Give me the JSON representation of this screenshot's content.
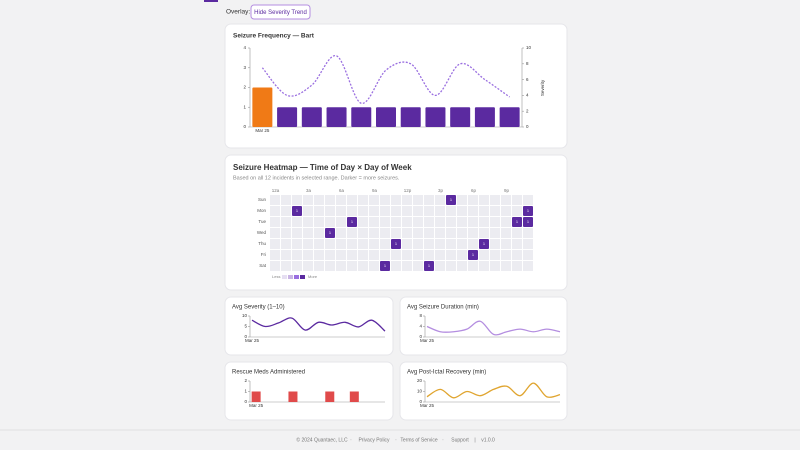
{
  "overlay": {
    "label": "Overlay:",
    "button": "Hide Severity Trend"
  },
  "chart_data": [
    {
      "type": "bar",
      "title": "Seizure Frequency — Bart",
      "categories": [
        "Mar 25",
        null,
        null,
        null,
        null,
        null,
        null,
        null,
        null,
        null,
        null
      ],
      "values": [
        2,
        1,
        1,
        1,
        1,
        1,
        1,
        1,
        1,
        1,
        1
      ],
      "colors": [
        "#f07a16",
        "#5b2aa0",
        "#5b2aa0",
        "#5b2aa0",
        "#5b2aa0",
        "#5b2aa0",
        "#5b2aa0",
        "#5b2aa0",
        "#5b2aa0",
        "#5b2aa0",
        "#5b2aa0"
      ],
      "ylim": [
        0,
        4
      ],
      "yticks": [
        0,
        1,
        2,
        3,
        4
      ],
      "line": {
        "values": [
          7.5,
          4,
          5.3,
          9,
          3,
          7.2,
          8,
          4,
          8,
          6,
          3.8
        ],
        "color": "#9a6fe0",
        "axis": "y2",
        "dashed": true
      },
      "y2lim": [
        0,
        10
      ],
      "y2ticks": [
        0,
        2,
        4,
        6,
        8,
        10
      ],
      "y2label": "Severity"
    },
    {
      "type": "heatmap",
      "title": "Seizure Heatmap — Time of Day × Day of Week",
      "subtitle": "Based on all 12 incidents in selected range. Darker = more seizures.",
      "rows": [
        "Sun",
        "Mon",
        "Tue",
        "Wed",
        "Thu",
        "Fri",
        "Sat"
      ],
      "columns": [
        "12a",
        null,
        null,
        "3a",
        null,
        null,
        "6a",
        null,
        null,
        "9a",
        null,
        null,
        "12p",
        null,
        null,
        "3p",
        null,
        null,
        "6p",
        null,
        null,
        "9p",
        null,
        null
      ],
      "values": [
        [
          0,
          0,
          0,
          0,
          0,
          0,
          0,
          0,
          0,
          0,
          0,
          0,
          0,
          0,
          0,
          0,
          1,
          0,
          0,
          0,
          0,
          0,
          0,
          0
        ],
        [
          0,
          0,
          1,
          0,
          0,
          0,
          0,
          0,
          0,
          0,
          0,
          0,
          0,
          0,
          0,
          0,
          0,
          0,
          0,
          0,
          0,
          0,
          0,
          1
        ],
        [
          0,
          0,
          0,
          0,
          0,
          0,
          0,
          1,
          0,
          0,
          0,
          0,
          0,
          0,
          0,
          0,
          0,
          0,
          0,
          0,
          0,
          0,
          1,
          1
        ],
        [
          0,
          0,
          0,
          0,
          0,
          1,
          0,
          0,
          0,
          0,
          0,
          0,
          0,
          0,
          0,
          0,
          0,
          0,
          0,
          0,
          0,
          0,
          0,
          0
        ],
        [
          0,
          0,
          0,
          0,
          0,
          0,
          0,
          0,
          0,
          0,
          0,
          1,
          0,
          0,
          0,
          0,
          0,
          0,
          0,
          1,
          0,
          0,
          0,
          0
        ],
        [
          0,
          0,
          0,
          0,
          0,
          0,
          0,
          0,
          0,
          0,
          0,
          0,
          0,
          0,
          0,
          0,
          0,
          0,
          1,
          0,
          0,
          0,
          0,
          0
        ],
        [
          0,
          0,
          0,
          0,
          0,
          0,
          0,
          0,
          0,
          0,
          1,
          0,
          0,
          0,
          1,
          0,
          0,
          0,
          0,
          0,
          0,
          0,
          0,
          0
        ]
      ],
      "empty_color": "#ececf1",
      "color": "#5b2aa0",
      "legend": {
        "low": "Less",
        "high": "More",
        "colors": [
          "#e6dff2",
          "#c9b4e4",
          "#9a6fe0",
          "#5b2aa0"
        ]
      }
    },
    {
      "type": "line",
      "title": "Avg Severity (1–10)",
      "categories": [
        "Mar 25",
        null,
        null,
        null,
        null,
        null,
        null,
        null,
        null,
        null,
        null
      ],
      "values": [
        8,
        5,
        6.7,
        9,
        3.3,
        7,
        5.7,
        7,
        4.8,
        8,
        2.8
      ],
      "color": "#5b2aa0",
      "ylim": [
        0,
        10
      ],
      "yticks": [
        0,
        5,
        10
      ]
    },
    {
      "type": "line",
      "title": "Avg Seizure Duration (min)",
      "categories": [
        "Mar 25",
        null,
        null,
        null,
        null,
        null,
        null,
        null,
        null,
        null,
        null
      ],
      "values": [
        4,
        2,
        2,
        3,
        6,
        1,
        2,
        3,
        2,
        3,
        2
      ],
      "color": "#b48ee0",
      "ylim": [
        0,
        8
      ],
      "yticks": [
        0,
        4,
        8
      ]
    },
    {
      "type": "bar",
      "title": "Rescue Meds Administered",
      "categories": [
        "Mar 25",
        null,
        null,
        null,
        null,
        null,
        null,
        null,
        null,
        null,
        null
      ],
      "values": [
        1,
        0,
        0,
        1,
        0,
        0,
        1,
        0,
        1,
        0,
        0
      ],
      "color": "#e04a4a",
      "ylim": [
        0,
        2
      ],
      "yticks": [
        0,
        1,
        2
      ]
    },
    {
      "type": "line",
      "title": "Avg Post-Ictal Recovery (min)",
      "categories": [
        "Mar 25",
        null,
        null,
        null,
        null,
        null,
        null,
        null,
        null,
        null,
        null
      ],
      "values": [
        5,
        12,
        4,
        10,
        6,
        12,
        15,
        6,
        18,
        5,
        7
      ],
      "color": "#e0a530",
      "ylim": [
        0,
        20
      ],
      "yticks": [
        0,
        10,
        20
      ]
    }
  ],
  "footer": {
    "copyright": "© 2024 Quantaec, LLC",
    "separator": "·",
    "links": [
      "Privacy Policy",
      "Terms of Service",
      "Support"
    ],
    "divider": "|",
    "version": "v1.0.0"
  }
}
